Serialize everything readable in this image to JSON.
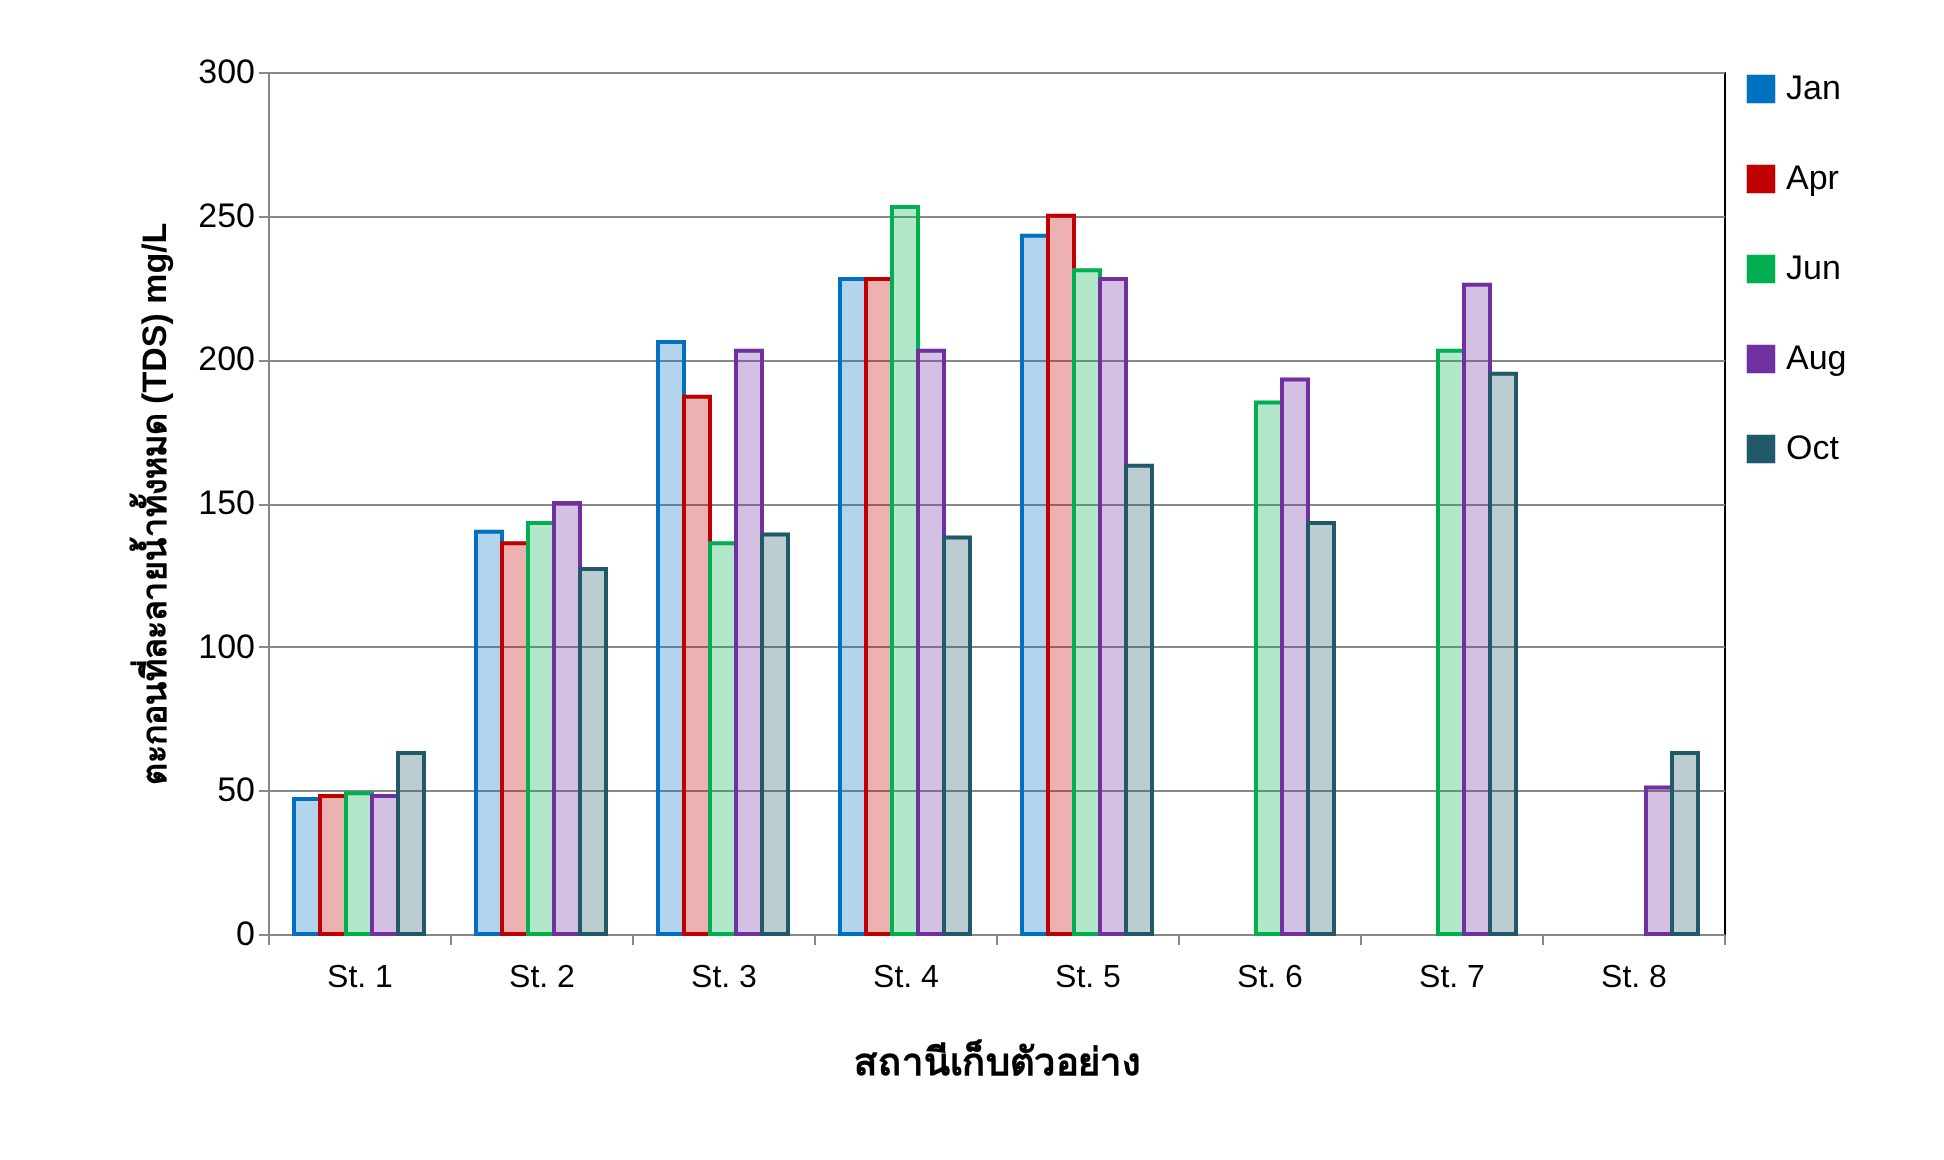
{
  "chart_data": {
    "type": "bar",
    "xlabel": "สถานีเก็บตัวอย่าง",
    "ylabel": "ตะกอนที่ละลายน้ำทั้งหมด (TDS)   mg/L",
    "categories": [
      "St. 1",
      "St. 2",
      "St. 3",
      "St. 4",
      "St. 5",
      "St. 6",
      "St. 7",
      "St. 8"
    ],
    "series": [
      {
        "name": "Jan",
        "color": "#0070c0",
        "values": [
          47,
          140,
          206,
          228,
          243,
          null,
          null,
          null
        ]
      },
      {
        "name": "Apr",
        "color": "#c00000",
        "values": [
          48,
          136,
          187,
          228,
          250,
          null,
          null,
          null
        ]
      },
      {
        "name": "Jun",
        "color": "#00b050",
        "values": [
          49,
          143,
          136,
          253,
          231,
          185,
          203,
          null
        ]
      },
      {
        "name": "Aug",
        "color": "#7030a0",
        "values": [
          48,
          150,
          203,
          203,
          228,
          193,
          226,
          51
        ]
      },
      {
        "name": "Oct",
        "color": "#215968",
        "values": [
          63,
          127,
          139,
          138,
          163,
          143,
          195,
          63
        ]
      }
    ],
    "ylim": [
      0,
      300
    ],
    "yticks": [
      0,
      50,
      100,
      150,
      200,
      250,
      300
    ],
    "grid": "y",
    "legend": "right"
  }
}
